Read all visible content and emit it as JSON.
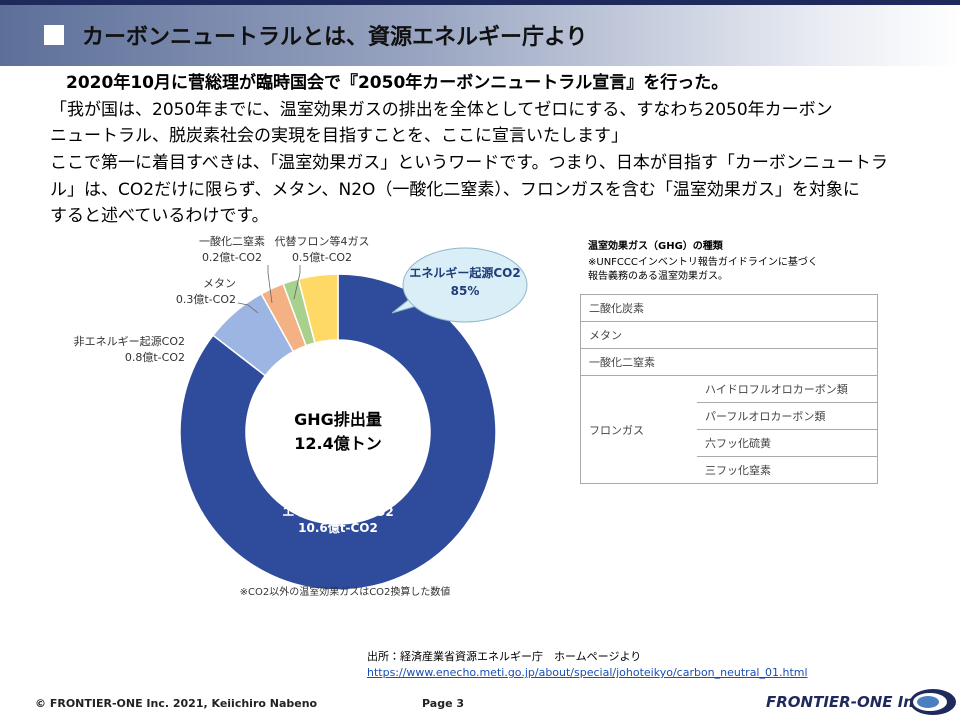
{
  "header": {
    "title": "カーボンニュートラルとは、資源エネルギー庁より"
  },
  "body": {
    "headline": "2020年10月に菅総理が臨時国会で『2050年カーボンニュートラル宣言』を行った。",
    "lines": [
      "「我が国は、2050年までに、温室効果ガスの排出を全体としてゼロにする、すなわち2050年カーボン",
      "ニュートラル、脱炭素社会の実現を目指すことを、ここに宣言いたします」",
      "ここで第一に着目すべきは、「温室効果ガス」というワードです。つまり、日本が目指す「カーボンニュートラ",
      "ル」は、CO2だけに限らず、メタン、N2O（一酸化二窒素）、フロンガスを含む「温室効果ガス」を対象に",
      "すると述べているわけです。"
    ]
  },
  "chart_data": {
    "type": "donut",
    "center_label": [
      "GHG排出量",
      "12.4億トン"
    ],
    "categories": [
      "エネルギー起源CO2",
      "非エネルギー起源CO2",
      "メタン",
      "一酸化二窒素",
      "代替フロン等4ガス"
    ],
    "values": [
      10.6,
      0.8,
      0.3,
      0.2,
      0.5
    ],
    "value_labels": [
      "10.6億t-CO2",
      "0.8億t-CO2",
      "0.3億t-CO2",
      "0.2億t-CO2",
      "0.5億t-CO2"
    ],
    "colors": [
      "#2f4b9b",
      "#9db5e3",
      "#f4b183",
      "#a9d18e",
      "#ffd966"
    ],
    "callout": [
      "エネルギー起源CO2",
      "85%"
    ],
    "note": "※CO2以外の温室効果ガスはCO2換算した数値"
  },
  "ghg_table": {
    "title": "温室効果ガス（GHG）の種類",
    "notes": [
      "※UNFCCCインベントリ報告ガイドラインに基づく",
      "報告義務のある温室効果ガス。"
    ],
    "rows": [
      "二酸化炭素",
      "メタン",
      "一酸化二窒素"
    ],
    "group": {
      "label": "フロンガス",
      "items": [
        "ハイドロフルオロカーボン類",
        "パーフルオロカーボン類",
        "六フッ化硫黄",
        "三フッ化窒素"
      ]
    }
  },
  "source": {
    "label": "出所：経済産業省資源エネルギー庁　ホームページより",
    "url": "https://www.enecho.meti.go.jp/about/special/johoteikyo/carbon_neutral_01.html"
  },
  "footer": {
    "copyright": "© FRONTIER-ONE Inc. 2021,  Keiichiro  Nabeno",
    "page": "Page 3",
    "logo": "FRONTIER-ONE Inc."
  }
}
